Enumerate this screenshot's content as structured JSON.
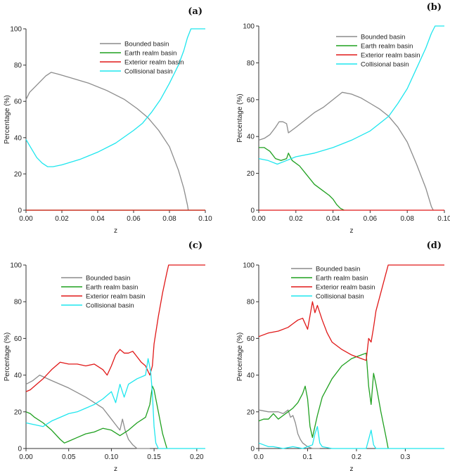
{
  "figure": {
    "y_label": "Percentage (%)",
    "x_label": "z"
  },
  "colors": {
    "Bounded basin": "#8c8c8c",
    "Earth realm basin": "#1fa01f",
    "Exterior realm basin": "#e01818",
    "Collisional basin": "#1ee6ee"
  },
  "chart_data": [
    {
      "panel_label": "(a)",
      "type": "line",
      "xlabel": "z",
      "ylabel": "Percentage (%)",
      "xlim": [
        0,
        0.1
      ],
      "ylim": [
        0,
        100
      ],
      "xticks": [
        0.0,
        0.02,
        0.04,
        0.06,
        0.08,
        0.1
      ],
      "xtick_labels": [
        "0.00",
        "0.02",
        "0.04",
        "0.06",
        "0.08",
        "0.10"
      ],
      "yticks": [
        0,
        20,
        40,
        60,
        80,
        100
      ],
      "ytick_labels": [
        "0",
        "20",
        "40",
        "60",
        "80",
        "100"
      ],
      "legend": [
        "Bounded basin",
        "Earth realm basin",
        "Exterior realm basin",
        "Collisional basin"
      ],
      "series": [
        {
          "name": "Bounded basin",
          "x": [
            0,
            0.002,
            0.005,
            0.008,
            0.011,
            0.014,
            0.018,
            0.025,
            0.035,
            0.045,
            0.055,
            0.062,
            0.068,
            0.074,
            0.08,
            0.085,
            0.088,
            0.09,
            0.0905
          ],
          "y": [
            61,
            65,
            68,
            71,
            74,
            76,
            75,
            73,
            70,
            66,
            61,
            56,
            51,
            44,
            35,
            22,
            12,
            3,
            0
          ]
        },
        {
          "name": "Earth realm basin",
          "x": [
            0,
            0.1
          ],
          "y": [
            0,
            0
          ]
        },
        {
          "name": "Exterior realm basin",
          "x": [
            0,
            0.1
          ],
          "y": [
            0,
            0
          ]
        },
        {
          "name": "Collisional basin",
          "x": [
            0,
            0.003,
            0.006,
            0.009,
            0.012,
            0.015,
            0.02,
            0.03,
            0.04,
            0.05,
            0.06,
            0.065,
            0.07,
            0.075,
            0.08,
            0.085,
            0.088,
            0.09,
            0.092,
            0.1
          ],
          "y": [
            39,
            34,
            29,
            26,
            24,
            24,
            25,
            28,
            32,
            37,
            44,
            48,
            54,
            61,
            70,
            80,
            88,
            95,
            100,
            100
          ]
        }
      ]
    },
    {
      "panel_label": "(b)",
      "type": "line",
      "xlabel": "z",
      "ylabel": "Percentage (%)",
      "xlim": [
        0,
        0.1
      ],
      "ylim": [
        0,
        100
      ],
      "xticks": [
        0.0,
        0.02,
        0.04,
        0.06,
        0.08,
        0.1
      ],
      "xtick_labels": [
        "0.00",
        "0.02",
        "0.04",
        "0.06",
        "0.08",
        "0.10"
      ],
      "yticks": [
        0,
        20,
        40,
        60,
        80,
        100
      ],
      "ytick_labels": [
        "0",
        "20",
        "40",
        "60",
        "80",
        "100"
      ],
      "legend": [
        "Bounded basin",
        "Earth realm basin",
        "Exterior realm basin",
        "Collisional basin"
      ],
      "series": [
        {
          "name": "Bounded basin",
          "x": [
            0,
            0.003,
            0.006,
            0.009,
            0.011,
            0.013,
            0.015,
            0.016,
            0.02,
            0.025,
            0.03,
            0.035,
            0.04,
            0.045,
            0.05,
            0.055,
            0.06,
            0.065,
            0.07,
            0.075,
            0.08,
            0.085,
            0.09,
            0.093,
            0.094
          ],
          "y": [
            38,
            39,
            41,
            45,
            48,
            48,
            47,
            42,
            45,
            49,
            53,
            56,
            60,
            64,
            63,
            61,
            58,
            55,
            51,
            45,
            37,
            25,
            12,
            2,
            0
          ]
        },
        {
          "name": "Earth realm basin",
          "x": [
            0,
            0.003,
            0.006,
            0.009,
            0.012,
            0.015,
            0.016,
            0.018,
            0.022,
            0.026,
            0.03,
            0.034,
            0.038,
            0.04,
            0.042,
            0.044,
            0.046
          ],
          "y": [
            34,
            34,
            32,
            28,
            27,
            28,
            31,
            27,
            24,
            19,
            14,
            11,
            8,
            6,
            3,
            1,
            0
          ]
        },
        {
          "name": "Exterior realm basin",
          "x": [
            0,
            0.1
          ],
          "y": [
            0,
            0
          ]
        },
        {
          "name": "Collisional basin",
          "x": [
            0,
            0.005,
            0.01,
            0.015,
            0.02,
            0.03,
            0.04,
            0.05,
            0.06,
            0.065,
            0.07,
            0.075,
            0.08,
            0.085,
            0.09,
            0.093,
            0.095,
            0.1
          ],
          "y": [
            28,
            27,
            25,
            27,
            29,
            31,
            34,
            38,
            43,
            47,
            51,
            58,
            66,
            77,
            88,
            96,
            100,
            100
          ]
        }
      ]
    },
    {
      "panel_label": "(c)",
      "type": "line",
      "xlabel": "z",
      "ylabel": "Percentage (%)",
      "xlim": [
        0,
        0.21
      ],
      "ylim": [
        0,
        100
      ],
      "xticks": [
        0.0,
        0.05,
        0.1,
        0.15,
        0.2
      ],
      "xtick_labels": [
        "0.00",
        "0.05",
        "0.10",
        "0.15",
        "0.20"
      ],
      "yticks": [
        0,
        20,
        40,
        60,
        80,
        100
      ],
      "ytick_labels": [
        "0",
        "20",
        "40",
        "60",
        "80",
        "100"
      ],
      "legend": [
        "Bounded basin",
        "Earth realm basin",
        "Exterior realm basin",
        "Collisional basin"
      ],
      "series": [
        {
          "name": "Bounded basin",
          "x": [
            0,
            0.008,
            0.016,
            0.03,
            0.05,
            0.07,
            0.09,
            0.1,
            0.105,
            0.11,
            0.113,
            0.116,
            0.12,
            0.125,
            0.13,
            0.135,
            0.14,
            0.145
          ],
          "y": [
            35,
            37,
            40,
            37,
            33,
            28,
            22,
            16,
            13,
            10,
            16,
            10,
            5,
            2,
            0,
            0,
            0,
            0
          ]
        },
        {
          "name": "Earth realm basin",
          "x": [
            0,
            0.005,
            0.01,
            0.02,
            0.03,
            0.04,
            0.045,
            0.05,
            0.06,
            0.07,
            0.08,
            0.09,
            0.1,
            0.11,
            0.12,
            0.13,
            0.14,
            0.145,
            0.148,
            0.15,
            0.155,
            0.16,
            0.165
          ],
          "y": [
            20,
            19,
            17,
            14,
            10,
            5,
            3,
            4,
            6,
            8,
            9,
            11,
            10,
            7,
            10,
            14,
            17,
            24,
            34,
            32,
            20,
            8,
            0
          ]
        },
        {
          "name": "Exterior realm basin",
          "x": [
            0,
            0.005,
            0.01,
            0.02,
            0.03,
            0.04,
            0.05,
            0.06,
            0.07,
            0.08,
            0.09,
            0.095,
            0.1,
            0.105,
            0.11,
            0.115,
            0.12,
            0.125,
            0.13,
            0.135,
            0.14,
            0.145,
            0.148,
            0.15,
            0.155,
            0.16,
            0.165,
            0.167,
            0.21
          ],
          "y": [
            31,
            32,
            34,
            38,
            43,
            47,
            46,
            46,
            45,
            46,
            43,
            40,
            45,
            51,
            54,
            52,
            52,
            53,
            50,
            47,
            45,
            40,
            45,
            57,
            72,
            85,
            96,
            100,
            100
          ]
        },
        {
          "name": "Collisional basin",
          "x": [
            0,
            0.01,
            0.02,
            0.03,
            0.04,
            0.05,
            0.06,
            0.07,
            0.08,
            0.09,
            0.1,
            0.105,
            0.11,
            0.115,
            0.12,
            0.13,
            0.14,
            0.143,
            0.146,
            0.148,
            0.15,
            0.152,
            0.155,
            0.21
          ],
          "y": [
            14,
            13,
            12,
            15,
            17,
            19,
            20,
            22,
            24,
            27,
            31,
            25,
            35,
            28,
            35,
            38,
            40,
            49,
            42,
            30,
            12,
            3,
            0,
            0
          ]
        }
      ]
    },
    {
      "panel_label": "(d)",
      "type": "line",
      "xlabel": "z",
      "ylabel": "Percentage (%)",
      "xlim": [
        0,
        0.38
      ],
      "ylim": [
        0,
        100
      ],
      "xticks": [
        0.0,
        0.1,
        0.2,
        0.3
      ],
      "xtick_labels": [
        "0.0",
        "0.1",
        "0.2",
        "0.3"
      ],
      "yticks": [
        0,
        20,
        40,
        60,
        80,
        100
      ],
      "ytick_labels": [
        "0",
        "20",
        "40",
        "60",
        "80",
        "100"
      ],
      "legend": [
        "Bounded basin",
        "Earth realm basin",
        "Exterior realm basin",
        "Collisional basin"
      ],
      "series": [
        {
          "name": "Bounded basin",
          "x": [
            0,
            0.02,
            0.04,
            0.05,
            0.06,
            0.065,
            0.07,
            0.075,
            0.08,
            0.085,
            0.09,
            0.1,
            0.11,
            0.12,
            0.125
          ],
          "y": [
            21,
            20,
            20,
            19,
            21,
            17,
            18,
            14,
            8,
            5,
            3,
            1,
            0,
            0,
            0
          ]
        },
        {
          "name": "Earth realm basin",
          "x": [
            0,
            0.01,
            0.02,
            0.03,
            0.04,
            0.05,
            0.06,
            0.07,
            0.08,
            0.09,
            0.095,
            0.1,
            0.105,
            0.11,
            0.12,
            0.13,
            0.15,
            0.17,
            0.19,
            0.21,
            0.22,
            0.225,
            0.23,
            0.235,
            0.24,
            0.25,
            0.26,
            0.265
          ],
          "y": [
            15,
            16,
            16,
            19,
            16,
            18,
            20,
            22,
            25,
            30,
            34,
            27,
            12,
            6,
            18,
            28,
            38,
            45,
            49,
            51,
            52,
            34,
            24,
            41,
            35,
            20,
            7,
            0
          ]
        },
        {
          "name": "Exterior realm basin",
          "x": [
            0,
            0.02,
            0.04,
            0.06,
            0.07,
            0.08,
            0.09,
            0.1,
            0.11,
            0.115,
            0.12,
            0.13,
            0.14,
            0.15,
            0.17,
            0.19,
            0.21,
            0.22,
            0.225,
            0.23,
            0.235,
            0.24,
            0.25,
            0.26,
            0.265,
            0.27,
            0.38
          ],
          "y": [
            61,
            63,
            64,
            66,
            68,
            70,
            71,
            65,
            80,
            74,
            78,
            70,
            63,
            58,
            54,
            51,
            49,
            48,
            60,
            58,
            66,
            75,
            85,
            95,
            100,
            100,
            100
          ]
        },
        {
          "name": "Collisional basin",
          "x": [
            0,
            0.01,
            0.02,
            0.03,
            0.05,
            0.07,
            0.09,
            0.1,
            0.11,
            0.115,
            0.12,
            0.125,
            0.13,
            0.15,
            0.17,
            0.2,
            0.22,
            0.225,
            0.23,
            0.235,
            0.24,
            0.38
          ],
          "y": [
            3,
            2,
            1,
            1,
            0,
            1,
            0,
            1,
            2,
            8,
            12,
            3,
            1,
            0,
            0,
            0,
            0,
            5,
            10,
            2,
            0,
            0
          ]
        }
      ]
    }
  ]
}
